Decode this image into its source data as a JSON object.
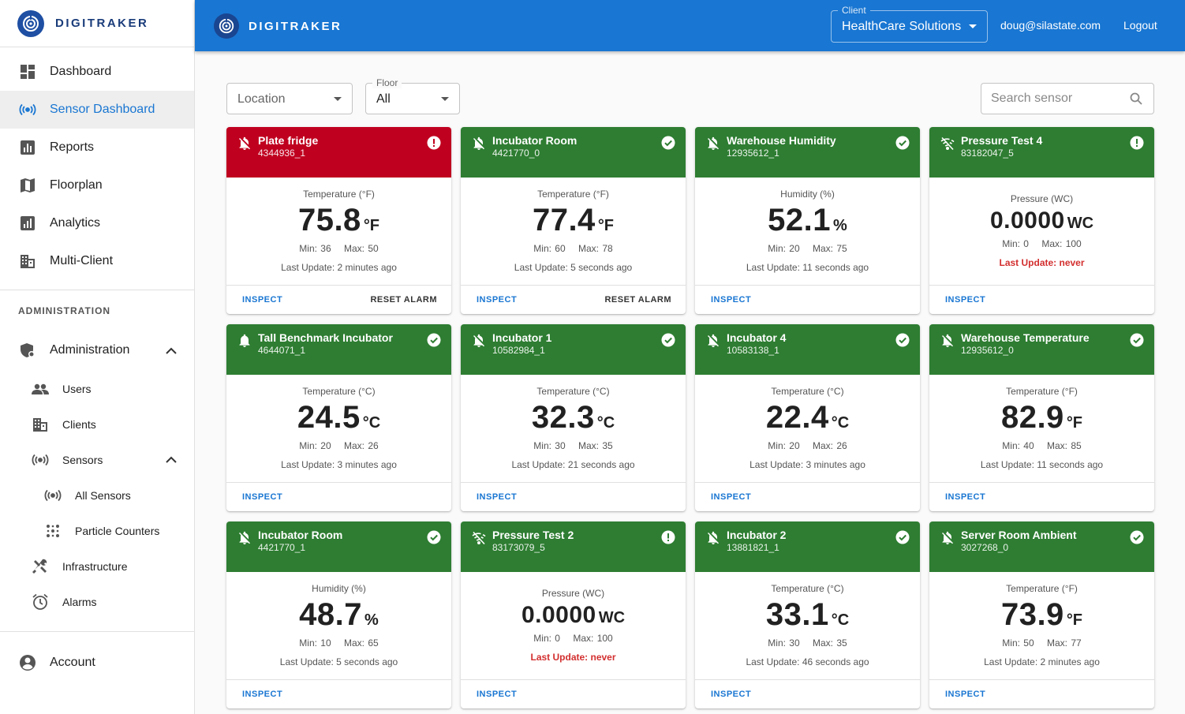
{
  "app": {
    "brand": "DIGITRAKER"
  },
  "sidebar": {
    "items": [
      {
        "label": "Dashboard",
        "icon": "dashboard-icon"
      },
      {
        "label": "Sensor Dashboard",
        "icon": "sensor-icon",
        "active": true
      },
      {
        "label": "Reports",
        "icon": "reports-icon"
      },
      {
        "label": "Floorplan",
        "icon": "map-icon"
      },
      {
        "label": "Analytics",
        "icon": "analytics-icon"
      },
      {
        "label": "Multi-Client",
        "icon": "building-icon"
      }
    ],
    "admin_section_label": "ADMINISTRATION",
    "admin": {
      "label": "Administration",
      "children": [
        {
          "label": "Users",
          "icon": "people-icon"
        },
        {
          "label": "Clients",
          "icon": "building-icon"
        },
        {
          "label": "Sensors",
          "icon": "sensor-icon"
        },
        {
          "label": "All Sensors",
          "icon": "sensor-icon"
        },
        {
          "label": "Particle Counters",
          "icon": "dots-icon"
        },
        {
          "label": "Infrastructure",
          "icon": "tools-icon"
        },
        {
          "label": "Alarms",
          "icon": "alarm-clock-icon"
        }
      ]
    },
    "account_label": "Account"
  },
  "header": {
    "client_label": "Client",
    "client_value": "HealthCare Solutions",
    "email": "doug@silastate.com",
    "logout": "Logout"
  },
  "filters": {
    "location_placeholder": "Location",
    "floor_label": "Floor",
    "floor_value": "All",
    "search_placeholder": "Search sensor"
  },
  "labels": {
    "inspect": "INSPECT",
    "reset_alarm": "RESET ALARM",
    "min": "Min:",
    "max": "Max:"
  },
  "colors": {
    "primary": "#1976d2",
    "ok": "#2e7d32",
    "alarm": "#c0001f"
  },
  "sensors": [
    {
      "name": "Plate fridge",
      "id": "4344936_1",
      "state": "alarm",
      "header_icon": "bell-off-icon",
      "status_icon": "alert-circle-icon",
      "metric": "Temperature (°F)",
      "value": "75.8",
      "unit": "°F",
      "min": "36",
      "max": "50",
      "last_update": "Last Update: 2 minutes ago",
      "reset": true
    },
    {
      "name": "Incubator Room",
      "id": "4421770_0",
      "state": "ok",
      "header_icon": "bell-off-icon",
      "status_icon": "check-circle-icon",
      "metric": "Temperature (°F)",
      "value": "77.4",
      "unit": "°F",
      "min": "60",
      "max": "78",
      "last_update": "Last Update: 5 seconds ago",
      "reset": true
    },
    {
      "name": "Warehouse Humidity",
      "id": "12935612_1",
      "state": "ok",
      "header_icon": "bell-off-icon",
      "status_icon": "check-circle-icon",
      "metric": "Humidity (%)",
      "value": "52.1",
      "unit": "%",
      "min": "20",
      "max": "75",
      "last_update": "Last Update: 11 seconds ago",
      "reset": false
    },
    {
      "name": "Pressure Test 4",
      "id": "83182047_5",
      "state": "ok",
      "header_icon": "wifi-off-icon",
      "status_icon": "alert-circle-icon",
      "metric": "Pressure (WC)",
      "value": "0.0000",
      "unit": "WC",
      "min": "0",
      "max": "100",
      "last_update": "Last Update: never",
      "reset": false,
      "never": true
    },
    {
      "name": "Tall Benchmark Incubator",
      "id": "4644071_1",
      "state": "ok",
      "header_icon": "bell-icon",
      "status_icon": "check-circle-icon",
      "metric": "Temperature (°C)",
      "value": "24.5",
      "unit": "°C",
      "min": "20",
      "max": "26",
      "last_update": "Last Update: 3 minutes ago",
      "reset": false
    },
    {
      "name": "Incubator 1",
      "id": "10582984_1",
      "state": "ok",
      "header_icon": "bell-off-icon",
      "status_icon": "check-circle-icon",
      "metric": "Temperature (°C)",
      "value": "32.3",
      "unit": "°C",
      "min": "30",
      "max": "35",
      "last_update": "Last Update: 21 seconds ago",
      "reset": false
    },
    {
      "name": "Incubator 4",
      "id": "10583138_1",
      "state": "ok",
      "header_icon": "bell-off-icon",
      "status_icon": "check-circle-icon",
      "metric": "Temperature (°C)",
      "value": "22.4",
      "unit": "°C",
      "min": "20",
      "max": "26",
      "last_update": "Last Update: 3 minutes ago",
      "reset": false
    },
    {
      "name": "Warehouse Temperature",
      "id": "12935612_0",
      "state": "ok",
      "header_icon": "bell-off-icon",
      "status_icon": "check-circle-icon",
      "metric": "Temperature (°F)",
      "value": "82.9",
      "unit": "°F",
      "min": "40",
      "max": "85",
      "last_update": "Last Update: 11 seconds ago",
      "reset": false
    },
    {
      "name": "Incubator Room",
      "id": "4421770_1",
      "state": "ok",
      "header_icon": "bell-off-icon",
      "status_icon": "check-circle-icon",
      "metric": "Humidity (%)",
      "value": "48.7",
      "unit": "%",
      "min": "10",
      "max": "65",
      "last_update": "Last Update: 5 seconds ago",
      "reset": false
    },
    {
      "name": "Pressure Test 2",
      "id": "83173079_5",
      "state": "ok",
      "header_icon": "wifi-off-icon",
      "status_icon": "alert-circle-icon",
      "metric": "Pressure (WC)",
      "value": "0.0000",
      "unit": "WC",
      "min": "0",
      "max": "100",
      "last_update": "Last Update: never",
      "reset": false,
      "never": true
    },
    {
      "name": "Incubator 2",
      "id": "13881821_1",
      "state": "ok",
      "header_icon": "bell-off-icon",
      "status_icon": "check-circle-icon",
      "metric": "Temperature (°C)",
      "value": "33.1",
      "unit": "°C",
      "min": "30",
      "max": "35",
      "last_update": "Last Update: 46 seconds ago",
      "reset": false
    },
    {
      "name": "Server Room Ambient",
      "id": "3027268_0",
      "state": "ok",
      "header_icon": "bell-off-icon",
      "status_icon": "check-circle-icon",
      "metric": "Temperature (°F)",
      "value": "73.9",
      "unit": "°F",
      "min": "50",
      "max": "77",
      "last_update": "Last Update: 2 minutes ago",
      "reset": false
    }
  ]
}
